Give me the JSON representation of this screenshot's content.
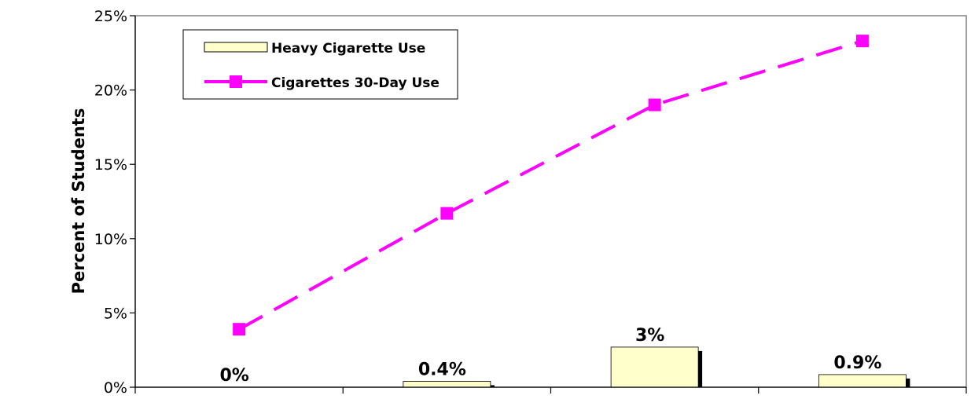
{
  "chart_data": {
    "type": "bar+line",
    "categories": [
      "",
      "",
      "",
      ""
    ],
    "ylabel": "Percent of Students",
    "ylim": [
      0,
      25
    ],
    "yticks": [
      0,
      5,
      10,
      15,
      20,
      25
    ],
    "ytick_labels": [
      "0%",
      "5%",
      "10%",
      "15%",
      "20%",
      "25%"
    ],
    "legend_position": "top-left",
    "grid": false,
    "series": [
      {
        "name": "Heavy Cigarette Use",
        "type": "bar",
        "color": "#FFFFCC",
        "values": [
          0,
          0.4,
          2.7,
          0.85
        ],
        "data_labels": [
          "0%",
          "0.4%",
          "3%",
          "0.9%"
        ]
      },
      {
        "name": "Cigarettes 30-Day Use",
        "type": "line",
        "line_style": "dashed",
        "marker": "square",
        "color": "#FF00FF",
        "values": [
          3.9,
          11.7,
          19.0,
          23.3
        ]
      }
    ]
  }
}
